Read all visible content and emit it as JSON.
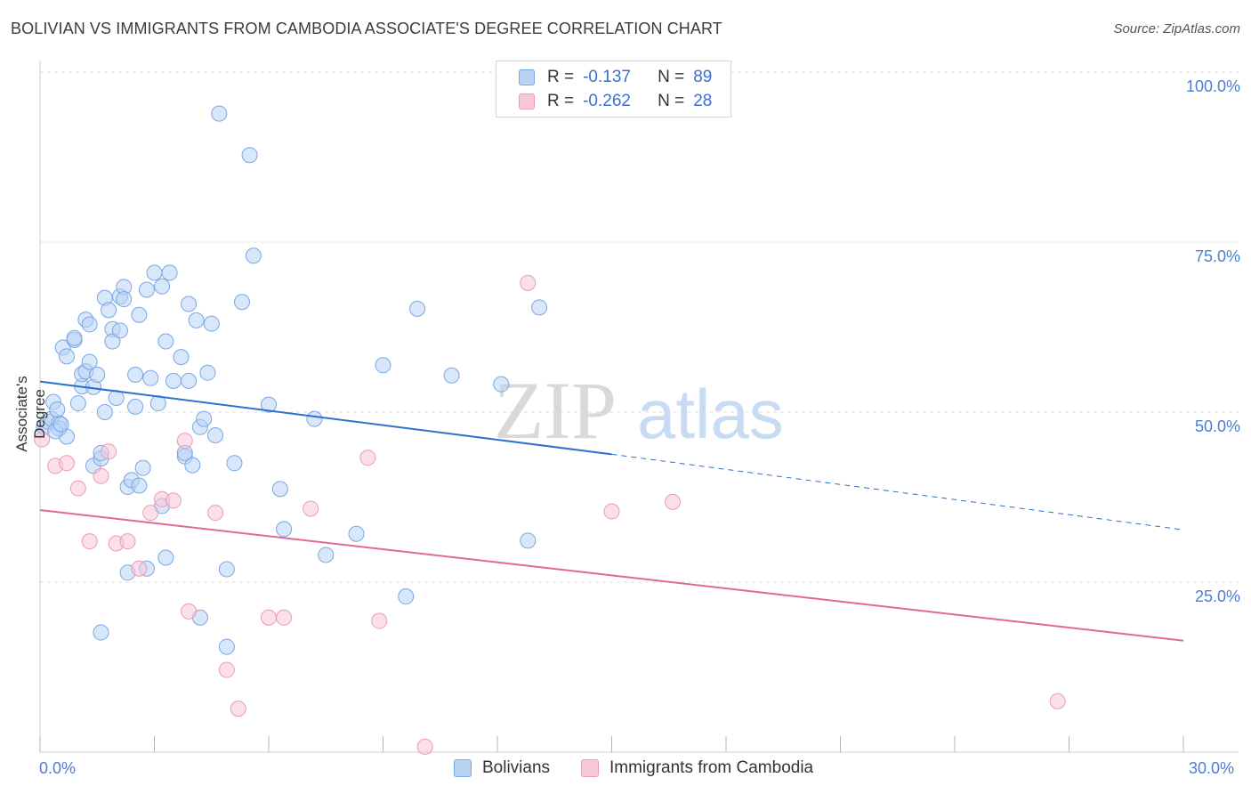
{
  "title": "BOLIVIAN VS IMMIGRANTS FROM CAMBODIA ASSOCIATE'S DEGREE CORRELATION CHART",
  "source": "Source: ZipAtlas.com",
  "watermark": {
    "zip": "ZIP",
    "atlas": "atlas"
  },
  "colors": {
    "blue": "#2f6fce",
    "pink": "#e06a95",
    "blue_fill": "#b9d3f5",
    "pink_fill": "#f7c7d8",
    "tick": "#4a7fd4"
  },
  "legend": {
    "blue": {
      "r_label": "R =",
      "r_value": "-0.137",
      "n_label": "N =",
      "n_value": "89"
    },
    "pink": {
      "r_label": "R =",
      "r_value": "-0.262",
      "n_label": "N =",
      "n_value": "28"
    }
  },
  "chart_data": {
    "type": "scatter",
    "ylabel": "Associate's Degree",
    "xlim": [
      0,
      30
    ],
    "ylim": [
      0,
      100
    ],
    "x_ticks": [
      "0.0%",
      "30.0%"
    ],
    "y_ticks": [
      "25.0%",
      "50.0%",
      "75.0%",
      "100.0%"
    ],
    "grid": true,
    "legend_position": "bottom",
    "series": [
      {
        "name": "Bolivians",
        "color": "#2f6fce",
        "trend": {
          "x0": 0,
          "y0": 54.5,
          "x1": 15,
          "y1": 43.8,
          "dash_to_x": 30,
          "dash_to_y": 32.7
        },
        "points": [
          [
            0.1,
            47.8
          ],
          [
            0.2,
            48.6
          ],
          [
            0.3,
            49.0
          ],
          [
            0.35,
            51.5
          ],
          [
            0.5,
            48.4
          ],
          [
            0.5,
            47.6
          ],
          [
            0.7,
            46.4
          ],
          [
            0.6,
            59.5
          ],
          [
            0.7,
            58.2
          ],
          [
            0.9,
            60.6
          ],
          [
            0.9,
            60.9
          ],
          [
            1.0,
            51.3
          ],
          [
            1.1,
            53.8
          ],
          [
            1.1,
            55.6
          ],
          [
            1.2,
            56.0
          ],
          [
            1.2,
            63.6
          ],
          [
            1.3,
            62.9
          ],
          [
            1.3,
            57.4
          ],
          [
            1.4,
            42.1
          ],
          [
            1.4,
            53.7
          ],
          [
            1.5,
            55.5
          ],
          [
            1.6,
            43.2
          ],
          [
            1.7,
            66.8
          ],
          [
            1.7,
            50.0
          ],
          [
            1.8,
            65.0
          ],
          [
            1.9,
            62.2
          ],
          [
            1.9,
            60.4
          ],
          [
            2.0,
            52.1
          ],
          [
            2.1,
            67.0
          ],
          [
            2.1,
            62.0
          ],
          [
            2.2,
            68.4
          ],
          [
            2.2,
            66.6
          ],
          [
            2.3,
            39.0
          ],
          [
            2.4,
            40.0
          ],
          [
            2.5,
            55.5
          ],
          [
            2.5,
            50.8
          ],
          [
            2.6,
            64.3
          ],
          [
            2.7,
            41.8
          ],
          [
            2.8,
            68.0
          ],
          [
            2.9,
            55.0
          ],
          [
            3.0,
            70.5
          ],
          [
            3.1,
            51.3
          ],
          [
            3.2,
            68.5
          ],
          [
            3.3,
            60.4
          ],
          [
            3.4,
            70.5
          ],
          [
            3.5,
            54.6
          ],
          [
            3.7,
            58.1
          ],
          [
            3.8,
            43.5
          ],
          [
            3.9,
            65.9
          ],
          [
            3.9,
            54.6
          ],
          [
            4.0,
            42.2
          ],
          [
            4.1,
            63.5
          ],
          [
            4.2,
            47.8
          ],
          [
            4.3,
            49.0
          ],
          [
            4.4,
            55.8
          ],
          [
            4.5,
            63.0
          ],
          [
            4.6,
            46.6
          ],
          [
            4.7,
            93.9
          ],
          [
            4.9,
            26.9
          ],
          [
            5.1,
            42.5
          ],
          [
            5.3,
            66.2
          ],
          [
            5.5,
            87.8
          ],
          [
            5.6,
            73.0
          ],
          [
            6.0,
            51.1
          ],
          [
            6.3,
            38.7
          ],
          [
            6.4,
            32.8
          ],
          [
            7.2,
            49.0
          ],
          [
            7.5,
            29.0
          ],
          [
            8.3,
            32.1
          ],
          [
            9.0,
            56.9
          ],
          [
            9.6,
            22.9
          ],
          [
            9.9,
            65.2
          ],
          [
            10.8,
            55.4
          ],
          [
            12.1,
            54.1
          ],
          [
            12.8,
            31.1
          ],
          [
            13.1,
            65.4
          ],
          [
            1.6,
            17.6
          ],
          [
            2.3,
            26.4
          ],
          [
            3.3,
            28.6
          ],
          [
            4.2,
            19.8
          ],
          [
            4.9,
            15.5
          ],
          [
            3.2,
            36.2
          ],
          [
            3.8,
            44.0
          ],
          [
            2.8,
            27.0
          ],
          [
            1.6,
            44.0
          ],
          [
            2.6,
            39.2
          ],
          [
            0.4,
            47.2
          ],
          [
            0.45,
            50.4
          ],
          [
            0.55,
            48.2
          ]
        ]
      },
      {
        "name": "Immigrants from Cambodia",
        "color": "#e06a95",
        "trend": {
          "x0": 0,
          "y0": 35.6,
          "x1": 30,
          "y1": 16.4
        },
        "points": [
          [
            0.05,
            46.0
          ],
          [
            0.4,
            42.1
          ],
          [
            0.7,
            42.5
          ],
          [
            1.0,
            38.8
          ],
          [
            1.3,
            31.0
          ],
          [
            1.6,
            40.6
          ],
          [
            1.8,
            44.2
          ],
          [
            2.0,
            30.7
          ],
          [
            2.3,
            31.0
          ],
          [
            2.6,
            27.0
          ],
          [
            2.9,
            35.2
          ],
          [
            3.2,
            37.2
          ],
          [
            3.5,
            37.0
          ],
          [
            3.8,
            45.8
          ],
          [
            3.9,
            20.7
          ],
          [
            4.6,
            35.2
          ],
          [
            4.9,
            12.1
          ],
          [
            5.2,
            6.4
          ],
          [
            6.0,
            19.8
          ],
          [
            6.4,
            19.8
          ],
          [
            7.1,
            35.8
          ],
          [
            8.6,
            43.3
          ],
          [
            8.9,
            19.3
          ],
          [
            10.1,
            0.8
          ],
          [
            15.0,
            35.4
          ],
          [
            16.6,
            36.8
          ],
          [
            12.8,
            69.0
          ],
          [
            26.7,
            7.5
          ]
        ]
      }
    ]
  }
}
